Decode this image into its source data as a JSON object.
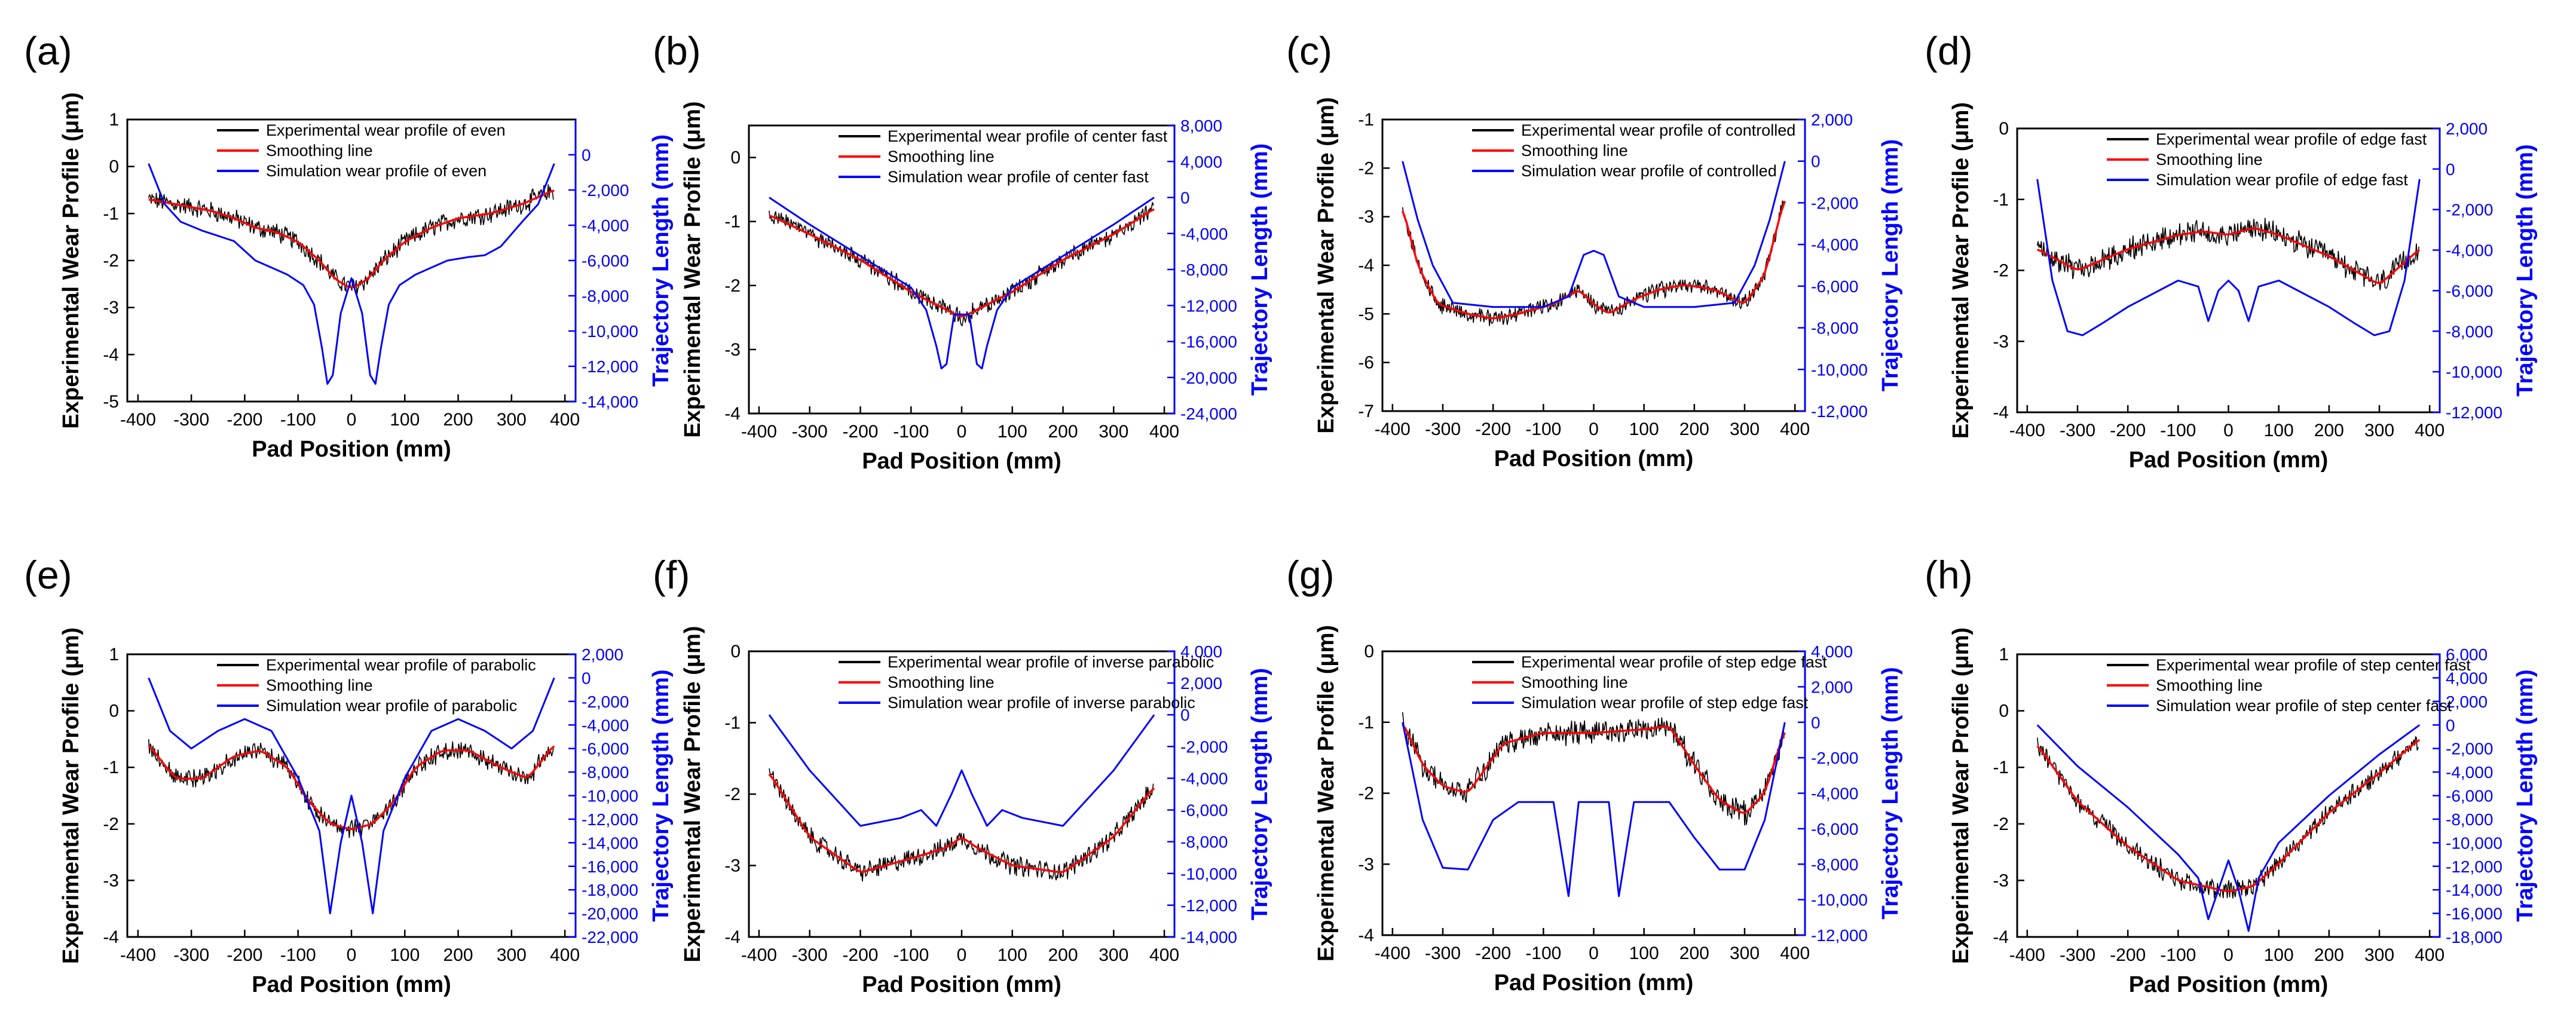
{
  "colors": {
    "experimental": "#000000",
    "smoothing": "#ff0000",
    "simulation": "#0000ff",
    "axis": "#000000",
    "right_axis": "#0000ff"
  },
  "chart_data": [
    {
      "panel": "(a)",
      "type": "line",
      "xlabel": "Pad Position (mm)",
      "ylabel": "Experimental Wear Profile (μm)",
      "y2label": "Trajectory Length (mm)",
      "xlim": [
        -420,
        420
      ],
      "ylim": [
        -5,
        1
      ],
      "y2lim": [
        -14000,
        2000
      ],
      "xticks": [
        -400,
        -300,
        -200,
        -100,
        0,
        100,
        200,
        300,
        400
      ],
      "yticks": [
        -5,
        -4,
        -3,
        -2,
        -1,
        0,
        1
      ],
      "y2ticks": [
        -14000,
        -12000,
        -10000,
        -8000,
        -6000,
        -4000,
        -2000,
        0
      ],
      "y2ticklabels": [
        "-14,000",
        "-12,000",
        "-10,000",
        "-8,000",
        "-6,000",
        "-4,000",
        "-2,000",
        "0"
      ],
      "legend": [
        "Experimental wear profile of even",
        "Smoothing line",
        "Simulation wear profile of even"
      ],
      "legend_position": "top",
      "smooth": {
        "x": [
          -380,
          -330,
          -260,
          -220,
          -180,
          -140,
          -100,
          -60,
          -30,
          0,
          30,
          60,
          100,
          150,
          200,
          260,
          320,
          380
        ],
        "y": [
          -0.7,
          -0.8,
          -0.95,
          -1.1,
          -1.3,
          -1.4,
          -1.6,
          -2.0,
          -2.4,
          -2.6,
          -2.4,
          -2.0,
          -1.6,
          -1.3,
          -1.1,
          -1.0,
          -0.8,
          -0.5
        ]
      },
      "noise": 0.18,
      "simulation": {
        "x": [
          -380,
          -350,
          -320,
          -280,
          -250,
          -220,
          -180,
          -150,
          -120,
          -90,
          -70,
          -55,
          -45,
          -35,
          -20,
          0,
          20,
          35,
          45,
          55,
          70,
          90,
          120,
          150,
          180,
          220,
          250,
          280,
          320,
          350,
          380
        ],
        "y": [
          -500,
          -2800,
          -3800,
          -4300,
          -4600,
          -4900,
          -6000,
          -6400,
          -6800,
          -7400,
          -8500,
          -11000,
          -13000,
          -12500,
          -9000,
          -7000,
          -9000,
          -12500,
          -13000,
          -11000,
          -8500,
          -7400,
          -6800,
          -6400,
          -6000,
          -5800,
          -5700,
          -5200,
          -3800,
          -2800,
          -500
        ]
      }
    },
    {
      "panel": "(b)",
      "type": "line",
      "xlabel": "Pad Position (mm)",
      "ylabel": "Experimental Wear Profile (μm)",
      "y2label": "Trajectory Length (mm)",
      "xlim": [
        -420,
        420
      ],
      "ylim": [
        -4,
        0.5
      ],
      "y2lim": [
        -24000,
        8000
      ],
      "xticks": [
        -400,
        -300,
        -200,
        -100,
        0,
        100,
        200,
        300,
        400
      ],
      "yticks": [
        -4,
        -3,
        -2,
        -1,
        0
      ],
      "y2ticks": [
        -24000,
        -20000,
        -16000,
        -12000,
        -8000,
        -4000,
        0,
        4000,
        8000
      ],
      "y2ticklabels": [
        "-24,000",
        "-20,000",
        "-16,000",
        "-12,000",
        "-8,000",
        "-4,000",
        "0",
        "4,000",
        "8,000"
      ],
      "legend": [
        "Experimental wear profile of center fast",
        "Smoothing line",
        "Simulation wear profile of center fast"
      ],
      "legend_position": "top",
      "smooth": {
        "x": [
          -380,
          -300,
          -200,
          -100,
          -50,
          0,
          50,
          100,
          200,
          300,
          380
        ],
        "y": [
          -0.9,
          -1.2,
          -1.6,
          -2.1,
          -2.3,
          -2.5,
          -2.3,
          -2.1,
          -1.6,
          -1.2,
          -0.8
        ]
      },
      "noise": 0.12,
      "simulation": {
        "x": [
          -380,
          -300,
          -200,
          -100,
          -70,
          -50,
          -40,
          -30,
          -15,
          0,
          15,
          30,
          40,
          50,
          70,
          100,
          200,
          300,
          380
        ],
        "y": [
          0,
          -3000,
          -6500,
          -10000,
          -12500,
          -16500,
          -19000,
          -18500,
          -13000,
          -13000,
          -13000,
          -18500,
          -19000,
          -16500,
          -12500,
          -10000,
          -6500,
          -3000,
          0
        ]
      }
    },
    {
      "panel": "(c)",
      "type": "line",
      "xlabel": "Pad Position (mm)",
      "ylabel": "Experimental Wear Profile (μm)",
      "y2label": "Trajectory Length (mm)",
      "xlim": [
        -420,
        420
      ],
      "ylim": [
        -7,
        -1
      ],
      "y2lim": [
        -12000,
        2000
      ],
      "xticks": [
        -400,
        -300,
        -200,
        -100,
        0,
        100,
        200,
        300,
        400
      ],
      "yticks": [
        -7,
        -6,
        -5,
        -4,
        -3,
        -2,
        -1
      ],
      "y2ticks": [
        -12000,
        -10000,
        -8000,
        -6000,
        -4000,
        -2000,
        0,
        2000
      ],
      "y2ticklabels": [
        "-12,000",
        "-10,000",
        "-8,000",
        "-6,000",
        "-4,000",
        "-2,000",
        "0",
        "2,000"
      ],
      "legend": [
        "Experimental wear profile of controlled",
        "Smoothing line",
        "Simulation wear profile of controlled"
      ],
      "legend_position": "top",
      "smooth": {
        "x": [
          -380,
          -350,
          -310,
          -250,
          -200,
          -150,
          -80,
          -30,
          0,
          30,
          80,
          130,
          180,
          240,
          300,
          340,
          380
        ],
        "y": [
          -2.8,
          -4.0,
          -4.8,
          -5.0,
          -5.1,
          -5.0,
          -4.8,
          -4.5,
          -4.8,
          -5.0,
          -4.7,
          -4.5,
          -4.4,
          -4.5,
          -4.8,
          -4.2,
          -2.6
        ]
      },
      "noise": 0.15,
      "simulation": {
        "x": [
          -380,
          -350,
          -320,
          -280,
          -200,
          -100,
          -50,
          -20,
          0,
          20,
          50,
          100,
          200,
          280,
          320,
          350,
          380
        ],
        "y": [
          0,
          -2800,
          -5000,
          -6800,
          -7000,
          -7000,
          -6500,
          -4500,
          -4300,
          -4500,
          -6500,
          -7000,
          -7000,
          -6800,
          -5000,
          -2800,
          0
        ]
      }
    },
    {
      "panel": "(d)",
      "type": "line",
      "xlabel": "Pad Position (mm)",
      "ylabel": "Experimental Wear Profile (μm)",
      "y2label": "Trajectory Length (mm)",
      "xlim": [
        -420,
        420
      ],
      "ylim": [
        -4,
        0
      ],
      "y2lim": [
        -12000,
        2000
      ],
      "xticks": [
        -400,
        -300,
        -200,
        -100,
        0,
        100,
        200,
        300,
        400
      ],
      "yticks": [
        -4,
        -3,
        -2,
        -1,
        0
      ],
      "y2ticks": [
        -12000,
        -10000,
        -8000,
        -6000,
        -4000,
        -2000,
        0,
        2000
      ],
      "y2ticklabels": [
        "-12,000",
        "-10,000",
        "-8,000",
        "-6,000",
        "-4,000",
        "-2,000",
        "0",
        "2,000"
      ],
      "legend": [
        "Experimental wear profile of edge fast",
        "Smoothing line",
        "Simulation wear profile of edge fast"
      ],
      "legend_position": "top",
      "smooth": {
        "x": [
          -380,
          -300,
          -200,
          -100,
          -50,
          0,
          50,
          100,
          200,
          300,
          380
        ],
        "y": [
          -1.7,
          -2.0,
          -1.7,
          -1.5,
          -1.45,
          -1.5,
          -1.4,
          -1.5,
          -1.8,
          -2.2,
          -1.7
        ]
      },
      "noise": 0.15,
      "simulation": {
        "x": [
          -380,
          -350,
          -320,
          -290,
          -250,
          -200,
          -100,
          -60,
          -40,
          -20,
          0,
          20,
          40,
          60,
          100,
          200,
          250,
          290,
          320,
          350,
          380
        ],
        "y": [
          -500,
          -5500,
          -8000,
          -8200,
          -7600,
          -6800,
          -5500,
          -5800,
          -7500,
          -6000,
          -5500,
          -6000,
          -7500,
          -5800,
          -5500,
          -6800,
          -7600,
          -8200,
          -8000,
          -5500,
          -500
        ]
      }
    },
    {
      "panel": "(e)",
      "type": "line",
      "xlabel": "Pad Position (mm)",
      "ylabel": "Experimental Wear Profile (μm)",
      "y2label": "Trajectory Length (mm)",
      "xlim": [
        -420,
        420
      ],
      "ylim": [
        -4,
        1
      ],
      "y2lim": [
        -22000,
        2000
      ],
      "xticks": [
        -400,
        -300,
        -200,
        -100,
        0,
        100,
        200,
        300,
        400
      ],
      "yticks": [
        -4,
        -3,
        -2,
        -1,
        0,
        1
      ],
      "y2ticks": [
        -22000,
        -20000,
        -18000,
        -16000,
        -14000,
        -12000,
        -10000,
        -8000,
        -6000,
        -4000,
        -2000,
        0,
        2000
      ],
      "y2ticklabels": [
        "-22,000",
        "-20,000",
        "-18,000",
        "-16,000",
        "-14,000",
        "-12,000",
        "-10,000",
        "-8,000",
        "-6,000",
        "-4,000",
        "-2,000",
        "0",
        "2,000"
      ],
      "legend": [
        "Experimental wear profile of parabolic",
        "Smoothing line",
        "Simulation wear profile of parabolic"
      ],
      "legend_position": "top",
      "smooth": {
        "x": [
          -380,
          -330,
          -280,
          -220,
          -170,
          -120,
          -80,
          -40,
          0,
          40,
          80,
          120,
          170,
          220,
          280,
          330,
          380
        ],
        "y": [
          -0.6,
          -1.2,
          -1.2,
          -0.8,
          -0.7,
          -1.0,
          -1.6,
          -2.0,
          -2.1,
          -2.0,
          -1.6,
          -1.0,
          -0.7,
          -0.7,
          -1.0,
          -1.2,
          -0.6
        ]
      },
      "noise": 0.15,
      "simulation": {
        "x": [
          -380,
          -340,
          -300,
          -250,
          -200,
          -150,
          -100,
          -60,
          -40,
          -20,
          0,
          20,
          40,
          60,
          100,
          150,
          200,
          250,
          300,
          340,
          380
        ],
        "y": [
          0,
          -4500,
          -6000,
          -4500,
          -3500,
          -4500,
          -8500,
          -13000,
          -20000,
          -14000,
          -10000,
          -14000,
          -20000,
          -13000,
          -8500,
          -4500,
          -3500,
          -4500,
          -6000,
          -4500,
          0
        ]
      }
    },
    {
      "panel": "(f)",
      "type": "line",
      "xlabel": "Pad Position (mm)",
      "ylabel": "Experimental Wear Profile (μm)",
      "y2label": "Trajectory Length (mm)",
      "xlim": [
        -420,
        420
      ],
      "ylim": [
        -4,
        0
      ],
      "y2lim": [
        -14000,
        4000
      ],
      "xticks": [
        -400,
        -300,
        -200,
        -100,
        0,
        100,
        200,
        300,
        400
      ],
      "yticks": [
        -4,
        -3,
        -2,
        -1,
        0
      ],
      "y2ticks": [
        -14000,
        -12000,
        -10000,
        -8000,
        -6000,
        -4000,
        -2000,
        0,
        2000,
        4000
      ],
      "y2ticklabels": [
        "-14,000",
        "-12,000",
        "-10,000",
        "-8,000",
        "-6,000",
        "-4,000",
        "-2,000",
        "0",
        "2,000",
        "4,000"
      ],
      "legend": [
        "Experimental wear profile of inverse parabolic",
        "Smoothing line",
        "Simulation wear profile of inverse parabolic"
      ],
      "legend_position": "top",
      "smooth": {
        "x": [
          -380,
          -300,
          -200,
          -100,
          -30,
          0,
          30,
          100,
          200,
          300,
          380
        ],
        "y": [
          -1.7,
          -2.6,
          -3.1,
          -2.9,
          -2.75,
          -2.6,
          -2.75,
          -3.0,
          -3.1,
          -2.6,
          -1.9
        ]
      },
      "noise": 0.12,
      "simulation": {
        "x": [
          -380,
          -300,
          -200,
          -120,
          -80,
          -50,
          -20,
          0,
          20,
          50,
          80,
          120,
          200,
          300,
          380
        ],
        "y": [
          0,
          -3500,
          -7000,
          -6500,
          -6000,
          -7000,
          -5000,
          -3500,
          -5000,
          -7000,
          -6000,
          -6500,
          -7000,
          -3500,
          0
        ]
      }
    },
    {
      "panel": "(g)",
      "type": "line",
      "xlabel": "Pad Position (mm)",
      "ylabel": "Experimental Wear Profile (μm)",
      "y2label": "Trajectory Length (mm)",
      "xlim": [
        -420,
        420
      ],
      "ylim": [
        -4,
        0
      ],
      "y2lim": [
        -12000,
        4000
      ],
      "xticks": [
        -400,
        -300,
        -200,
        -100,
        0,
        100,
        200,
        300,
        400
      ],
      "yticks": [
        -4,
        -3,
        -2,
        -1,
        0
      ],
      "y2ticks": [
        -12000,
        -10000,
        -8000,
        -6000,
        -4000,
        -2000,
        0,
        2000,
        4000
      ],
      "y2ticklabels": [
        "-12,000",
        "-10,000",
        "-8,000",
        "-6,000",
        "-4,000",
        "-2,000",
        "0",
        "2,000",
        "4,000"
      ],
      "legend": [
        "Experimental wear profile of step edge fast",
        "Smoothing line",
        "Simulation wear profile of step edge fast"
      ],
      "legend_position": "top",
      "smooth": {
        "x": [
          -380,
          -340,
          -300,
          -250,
          -180,
          -100,
          0,
          100,
          150,
          200,
          250,
          300,
          340,
          380
        ],
        "y": [
          -1.0,
          -1.6,
          -1.9,
          -2.0,
          -1.3,
          -1.15,
          -1.15,
          -1.1,
          -1.05,
          -1.6,
          -2.1,
          -2.3,
          -2.0,
          -1.1
        ]
      },
      "noise": 0.15,
      "simulation": {
        "x": [
          -380,
          -340,
          -300,
          -250,
          -200,
          -150,
          -80,
          -50,
          -30,
          0,
          30,
          50,
          80,
          150,
          200,
          250,
          300,
          340,
          380
        ],
        "y": [
          0,
          -5500,
          -8200,
          -8300,
          -5500,
          -4500,
          -4500,
          -9800,
          -4500,
          -4500,
          -4500,
          -9800,
          -4500,
          -4500,
          -6500,
          -8300,
          -8300,
          -5500,
          0
        ]
      }
    },
    {
      "panel": "(h)",
      "type": "line",
      "xlabel": "Pad Position (mm)",
      "ylabel": "Experimental Wear Profile (μm)",
      "y2label": "Trajectory Length (mm)",
      "xlim": [
        -420,
        420
      ],
      "ylim": [
        -4,
        1
      ],
      "y2lim": [
        -18000,
        6000
      ],
      "xticks": [
        -400,
        -300,
        -200,
        -100,
        0,
        100,
        200,
        300,
        400
      ],
      "yticks": [
        -4,
        -3,
        -2,
        -1,
        0,
        1
      ],
      "y2ticks": [
        -18000,
        -16000,
        -14000,
        -12000,
        -10000,
        -8000,
        -6000,
        -4000,
        -2000,
        0,
        2000,
        4000,
        6000
      ],
      "y2ticklabels": [
        "-18,000",
        "-16,000",
        "-14,000",
        "-12,000",
        "-10,000",
        "-8,000",
        "-6,000",
        "-4,000",
        "-2,000",
        "0",
        "2,000",
        "4,000",
        "6,000"
      ],
      "legend": [
        "Experimental wear profile of step center fast",
        "Smoothing line",
        "Simulation wear profile of step center fast"
      ],
      "legend_position": "top",
      "smooth": {
        "x": [
          -380,
          -300,
          -200,
          -100,
          -50,
          0,
          50,
          100,
          200,
          300,
          380
        ],
        "y": [
          -0.6,
          -1.6,
          -2.4,
          -3.0,
          -3.1,
          -3.2,
          -3.1,
          -2.7,
          -1.8,
          -1.1,
          -0.5
        ]
      },
      "noise": 0.15,
      "simulation": {
        "x": [
          -380,
          -300,
          -200,
          -100,
          -60,
          -40,
          -20,
          0,
          20,
          40,
          60,
          100,
          200,
          300,
          380
        ],
        "y": [
          0,
          -3500,
          -7000,
          -11000,
          -13000,
          -16500,
          -14000,
          -11500,
          -14000,
          -17500,
          -13000,
          -10000,
          -6000,
          -2500,
          0
        ]
      }
    }
  ]
}
